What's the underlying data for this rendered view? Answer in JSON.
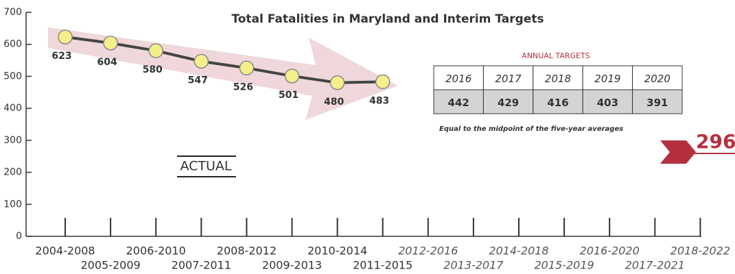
{
  "chart_data": {
    "type": "line",
    "title": "Total Fatalities in Maryland and Interim Targets",
    "categories": [
      "2004-2008",
      "2005-2009",
      "2006-2010",
      "2007-2011",
      "2008-2012",
      "2009-2013",
      "2010-2014",
      "2011-2015",
      "2012-2016",
      "2013-2017",
      "2014-2018",
      "2015-2019",
      "2016-2020",
      "2017-2021",
      "2018-2022"
    ],
    "values": [
      623,
      604,
      580,
      547,
      526,
      501,
      480,
      483,
      null,
      null,
      null,
      null,
      null,
      null,
      null
    ],
    "color": "#444444",
    "marker_color": "#f4ef8a",
    "ylim": [
      0,
      700
    ],
    "yticks": [
      0,
      100,
      200,
      300,
      400,
      500,
      600,
      700
    ],
    "grid": false,
    "annotations": [
      "ACTUAL",
      "296"
    ]
  },
  "annual_targets": {
    "title": "ANNUAL TARGETS",
    "years": [
      "2016",
      "2017",
      "2018",
      "2019",
      "2020"
    ],
    "values": [
      "442",
      "429",
      "416",
      "403",
      "391"
    ],
    "note": "Equal to the midpoint of the five-year averages"
  }
}
